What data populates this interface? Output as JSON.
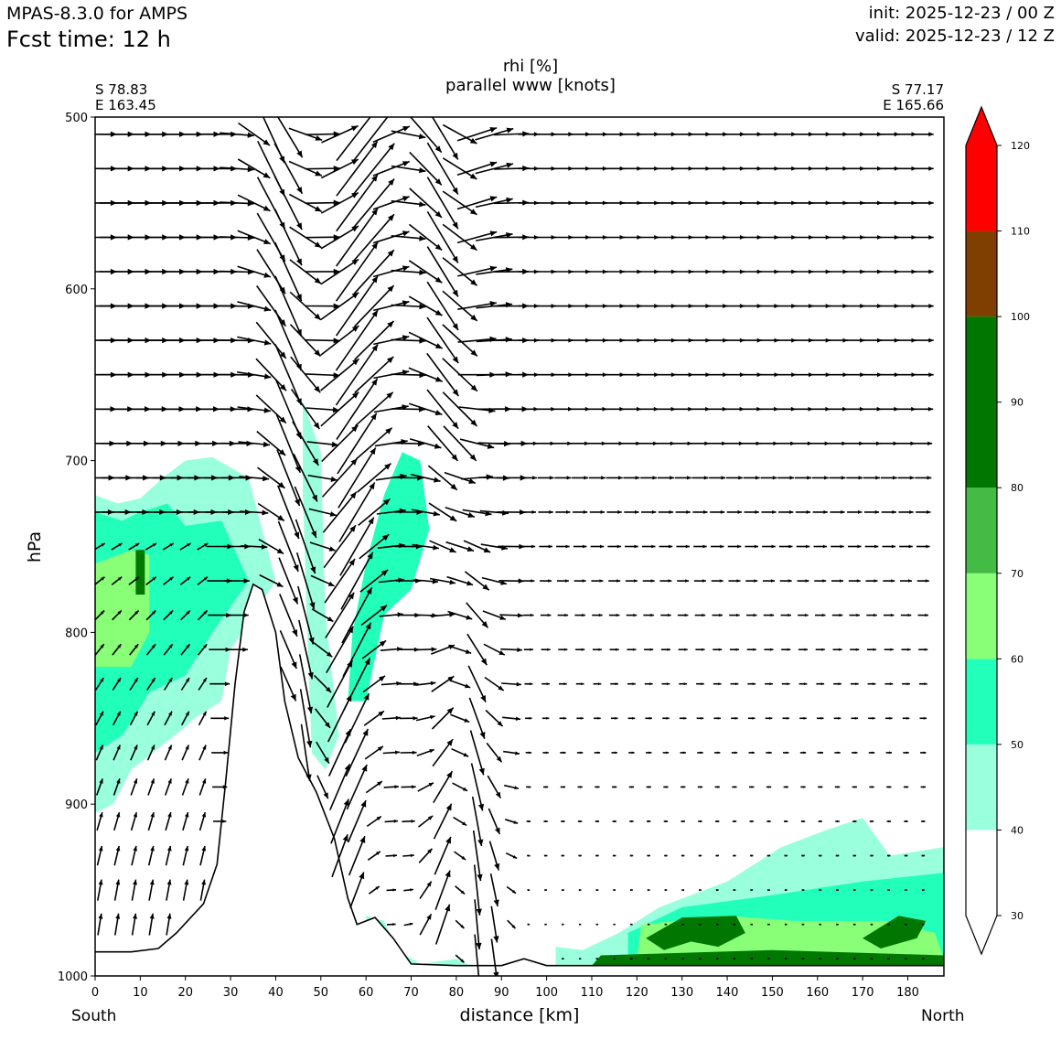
{
  "header": {
    "model": "MPAS-8.3.0 for AMPS",
    "fcst_time": "Fcst time:   12 h",
    "init": "init: 2025-12-23 / 00 Z",
    "valid": "valid: 2025-12-23 / 12 Z"
  },
  "chart_data": {
    "type": "cross-section",
    "title_line1": "rhi [%]",
    "title_line2": "parallel www [knots]",
    "start_point": {
      "lat": "S 78.83",
      "lon": "E 163.45"
    },
    "end_point": {
      "lat": "S 77.17",
      "lon": "E 165.66"
    },
    "xlabel": "distance [km]",
    "ylabel": "hPa",
    "x_range": [
      0,
      188
    ],
    "y_range": [
      1000,
      500
    ],
    "x_ticks": [
      "0",
      "10",
      "20",
      "30",
      "40",
      "50",
      "60",
      "70",
      "80",
      "90",
      "100",
      "110",
      "120",
      "130",
      "140",
      "150",
      "160",
      "170",
      "180"
    ],
    "y_ticks": [
      "500",
      "600",
      "700",
      "800",
      "900",
      "1000"
    ],
    "x_end_labels": {
      "left": "South",
      "right": "North"
    },
    "colorbar": {
      "levels": [
        "30",
        "40",
        "50",
        "60",
        "70",
        "80",
        "90",
        "100",
        "110",
        "120"
      ],
      "bins": [
        {
          "from": 30,
          "to": 40,
          "color": "#ffffff"
        },
        {
          "from": 40,
          "to": 50,
          "color": "#99ffdd"
        },
        {
          "from": 50,
          "to": 60,
          "color": "#22ffbb"
        },
        {
          "from": 60,
          "to": 70,
          "color": "#88ff77"
        },
        {
          "from": 70,
          "to": 80,
          "color": "#44bb44"
        },
        {
          "from": 80,
          "to": 100,
          "color": "#007700"
        },
        {
          "from": 100,
          "to": 110,
          "color": "#7f3f00"
        },
        {
          "from": 110,
          "to": 120,
          "color": "#ff0000"
        }
      ]
    },
    "terrain": [
      {
        "km": 0,
        "hPa": 986
      },
      {
        "km": 8,
        "hPa": 986
      },
      {
        "km": 14,
        "hPa": 984
      },
      {
        "km": 18,
        "hPa": 975
      },
      {
        "km": 24,
        "hPa": 958
      },
      {
        "km": 27,
        "hPa": 935
      },
      {
        "km": 29,
        "hPa": 885
      },
      {
        "km": 31,
        "hPa": 830
      },
      {
        "km": 33,
        "hPa": 788
      },
      {
        "km": 35,
        "hPa": 772
      },
      {
        "km": 37,
        "hPa": 775
      },
      {
        "km": 40,
        "hPa": 800
      },
      {
        "km": 42,
        "hPa": 840
      },
      {
        "km": 45,
        "hPa": 873
      },
      {
        "km": 49,
        "hPa": 893
      },
      {
        "km": 53,
        "hPa": 920
      },
      {
        "km": 56,
        "hPa": 955
      },
      {
        "km": 58,
        "hPa": 970
      },
      {
        "km": 62,
        "hPa": 966
      },
      {
        "km": 66,
        "hPa": 978
      },
      {
        "km": 70,
        "hPa": 993
      },
      {
        "km": 80,
        "hPa": 994
      },
      {
        "km": 90,
        "hPa": 994
      },
      {
        "km": 95,
        "hPa": 990
      },
      {
        "km": 100,
        "hPa": 994
      },
      {
        "km": 188,
        "hPa": 994
      }
    ],
    "humidity_regions": [
      {
        "label": "40-50",
        "color": "#99ffdd",
        "polygon": [
          [
            0,
            720
          ],
          [
            5,
            725
          ],
          [
            10,
            722
          ],
          [
            15,
            710
          ],
          [
            20,
            700
          ],
          [
            26,
            698
          ],
          [
            34,
            710
          ],
          [
            40,
            770
          ],
          [
            30,
            810
          ],
          [
            28,
            840
          ],
          [
            22,
            850
          ],
          [
            20,
            855
          ],
          [
            8,
            880
          ],
          [
            4,
            900
          ],
          [
            0,
            905
          ]
        ]
      },
      {
        "label": "50-60",
        "color": "#22ffbb",
        "polygon": [
          [
            0,
            730
          ],
          [
            6,
            735
          ],
          [
            10,
            730
          ],
          [
            16,
            725
          ],
          [
            20,
            738
          ],
          [
            28,
            735
          ],
          [
            34,
            770
          ],
          [
            26,
            800
          ],
          [
            20,
            825
          ],
          [
            12,
            835
          ],
          [
            6,
            860
          ],
          [
            0,
            870
          ]
        ]
      },
      {
        "label": "60-70",
        "color": "#88ff77",
        "polygon": [
          [
            0,
            760
          ],
          [
            8,
            752
          ],
          [
            12,
            755
          ],
          [
            12,
            800
          ],
          [
            8,
            820
          ],
          [
            0,
            820
          ]
        ]
      },
      {
        "label": "80-100",
        "color": "#007700",
        "polygon": [
          [
            9,
            752
          ],
          [
            11,
            752
          ],
          [
            11,
            778
          ],
          [
            9,
            778
          ]
        ]
      },
      {
        "label": "40-50",
        "color": "#99ffdd",
        "polygon": [
          [
            46,
            665
          ],
          [
            50,
            695
          ],
          [
            51,
            790
          ],
          [
            54,
            860
          ],
          [
            51,
            880
          ],
          [
            48,
            870
          ],
          [
            47,
            800
          ],
          [
            46,
            720
          ]
        ]
      },
      {
        "label": "50-60",
        "color": "#22ffbb",
        "polygon": [
          [
            56,
            840
          ],
          [
            57,
            800
          ],
          [
            60,
            760
          ],
          [
            64,
            720
          ],
          [
            68,
            695
          ],
          [
            72,
            700
          ],
          [
            74,
            740
          ],
          [
            70,
            775
          ],
          [
            64,
            790
          ],
          [
            60,
            840
          ]
        ]
      },
      {
        "label": "40-50",
        "color": "#99ffdd",
        "polygon": [
          [
            60,
            965
          ],
          [
            64,
            968
          ],
          [
            67,
            985
          ],
          [
            72,
            993
          ],
          [
            80,
            990
          ],
          [
            83,
            994
          ],
          [
            60,
            994
          ]
        ]
      },
      {
        "label": "40-50",
        "color": "#99ffdd",
        "polygon": [
          [
            102,
            994
          ],
          [
            102,
            983
          ],
          [
            108,
            985
          ],
          [
            116,
            975
          ],
          [
            125,
            960
          ],
          [
            140,
            945
          ],
          [
            152,
            925
          ],
          [
            162,
            915
          ],
          [
            170,
            908
          ],
          [
            176,
            930
          ],
          [
            188,
            925
          ],
          [
            188,
            994
          ]
        ]
      },
      {
        "label": "50-60",
        "color": "#22ffbb",
        "polygon": [
          [
            118,
            994
          ],
          [
            118,
            975
          ],
          [
            130,
            960
          ],
          [
            150,
            953
          ],
          [
            170,
            945
          ],
          [
            188,
            940
          ],
          [
            188,
            994
          ]
        ]
      },
      {
        "label": "60-70",
        "color": "#88ff77",
        "polygon": [
          [
            120,
            990
          ],
          [
            121,
            970
          ],
          [
            140,
            965
          ],
          [
            155,
            968
          ],
          [
            175,
            968
          ],
          [
            186,
            975
          ],
          [
            188,
            990
          ]
        ]
      },
      {
        "label": "80-100",
        "color": "#007700",
        "polygon": [
          [
            122,
            978
          ],
          [
            130,
            966
          ],
          [
            142,
            965
          ],
          [
            144,
            975
          ],
          [
            138,
            983
          ],
          [
            132,
            980
          ],
          [
            126,
            985
          ]
        ]
      },
      {
        "label": "80-100",
        "color": "#007700",
        "polygon": [
          [
            170,
            978
          ],
          [
            178,
            965
          ],
          [
            184,
            968
          ],
          [
            182,
            978
          ],
          [
            174,
            984
          ]
        ]
      },
      {
        "label": "80-100",
        "color": "#007700",
        "polygon": [
          [
            110,
            994
          ],
          [
            112,
            988
          ],
          [
            150,
            985
          ],
          [
            188,
            988
          ],
          [
            188,
            994
          ]
        ]
      }
    ],
    "wind_field": {
      "x_start_km": 0,
      "x_step_km": 3.8,
      "x_count": 49,
      "levels_hPa": [
        510,
        530,
        550,
        570,
        590,
        610,
        630,
        650,
        670,
        690,
        710,
        730,
        750,
        770,
        790,
        810,
        830,
        850,
        870,
        890,
        910,
        930,
        950,
        970,
        990
      ],
      "units": "knots"
    }
  }
}
